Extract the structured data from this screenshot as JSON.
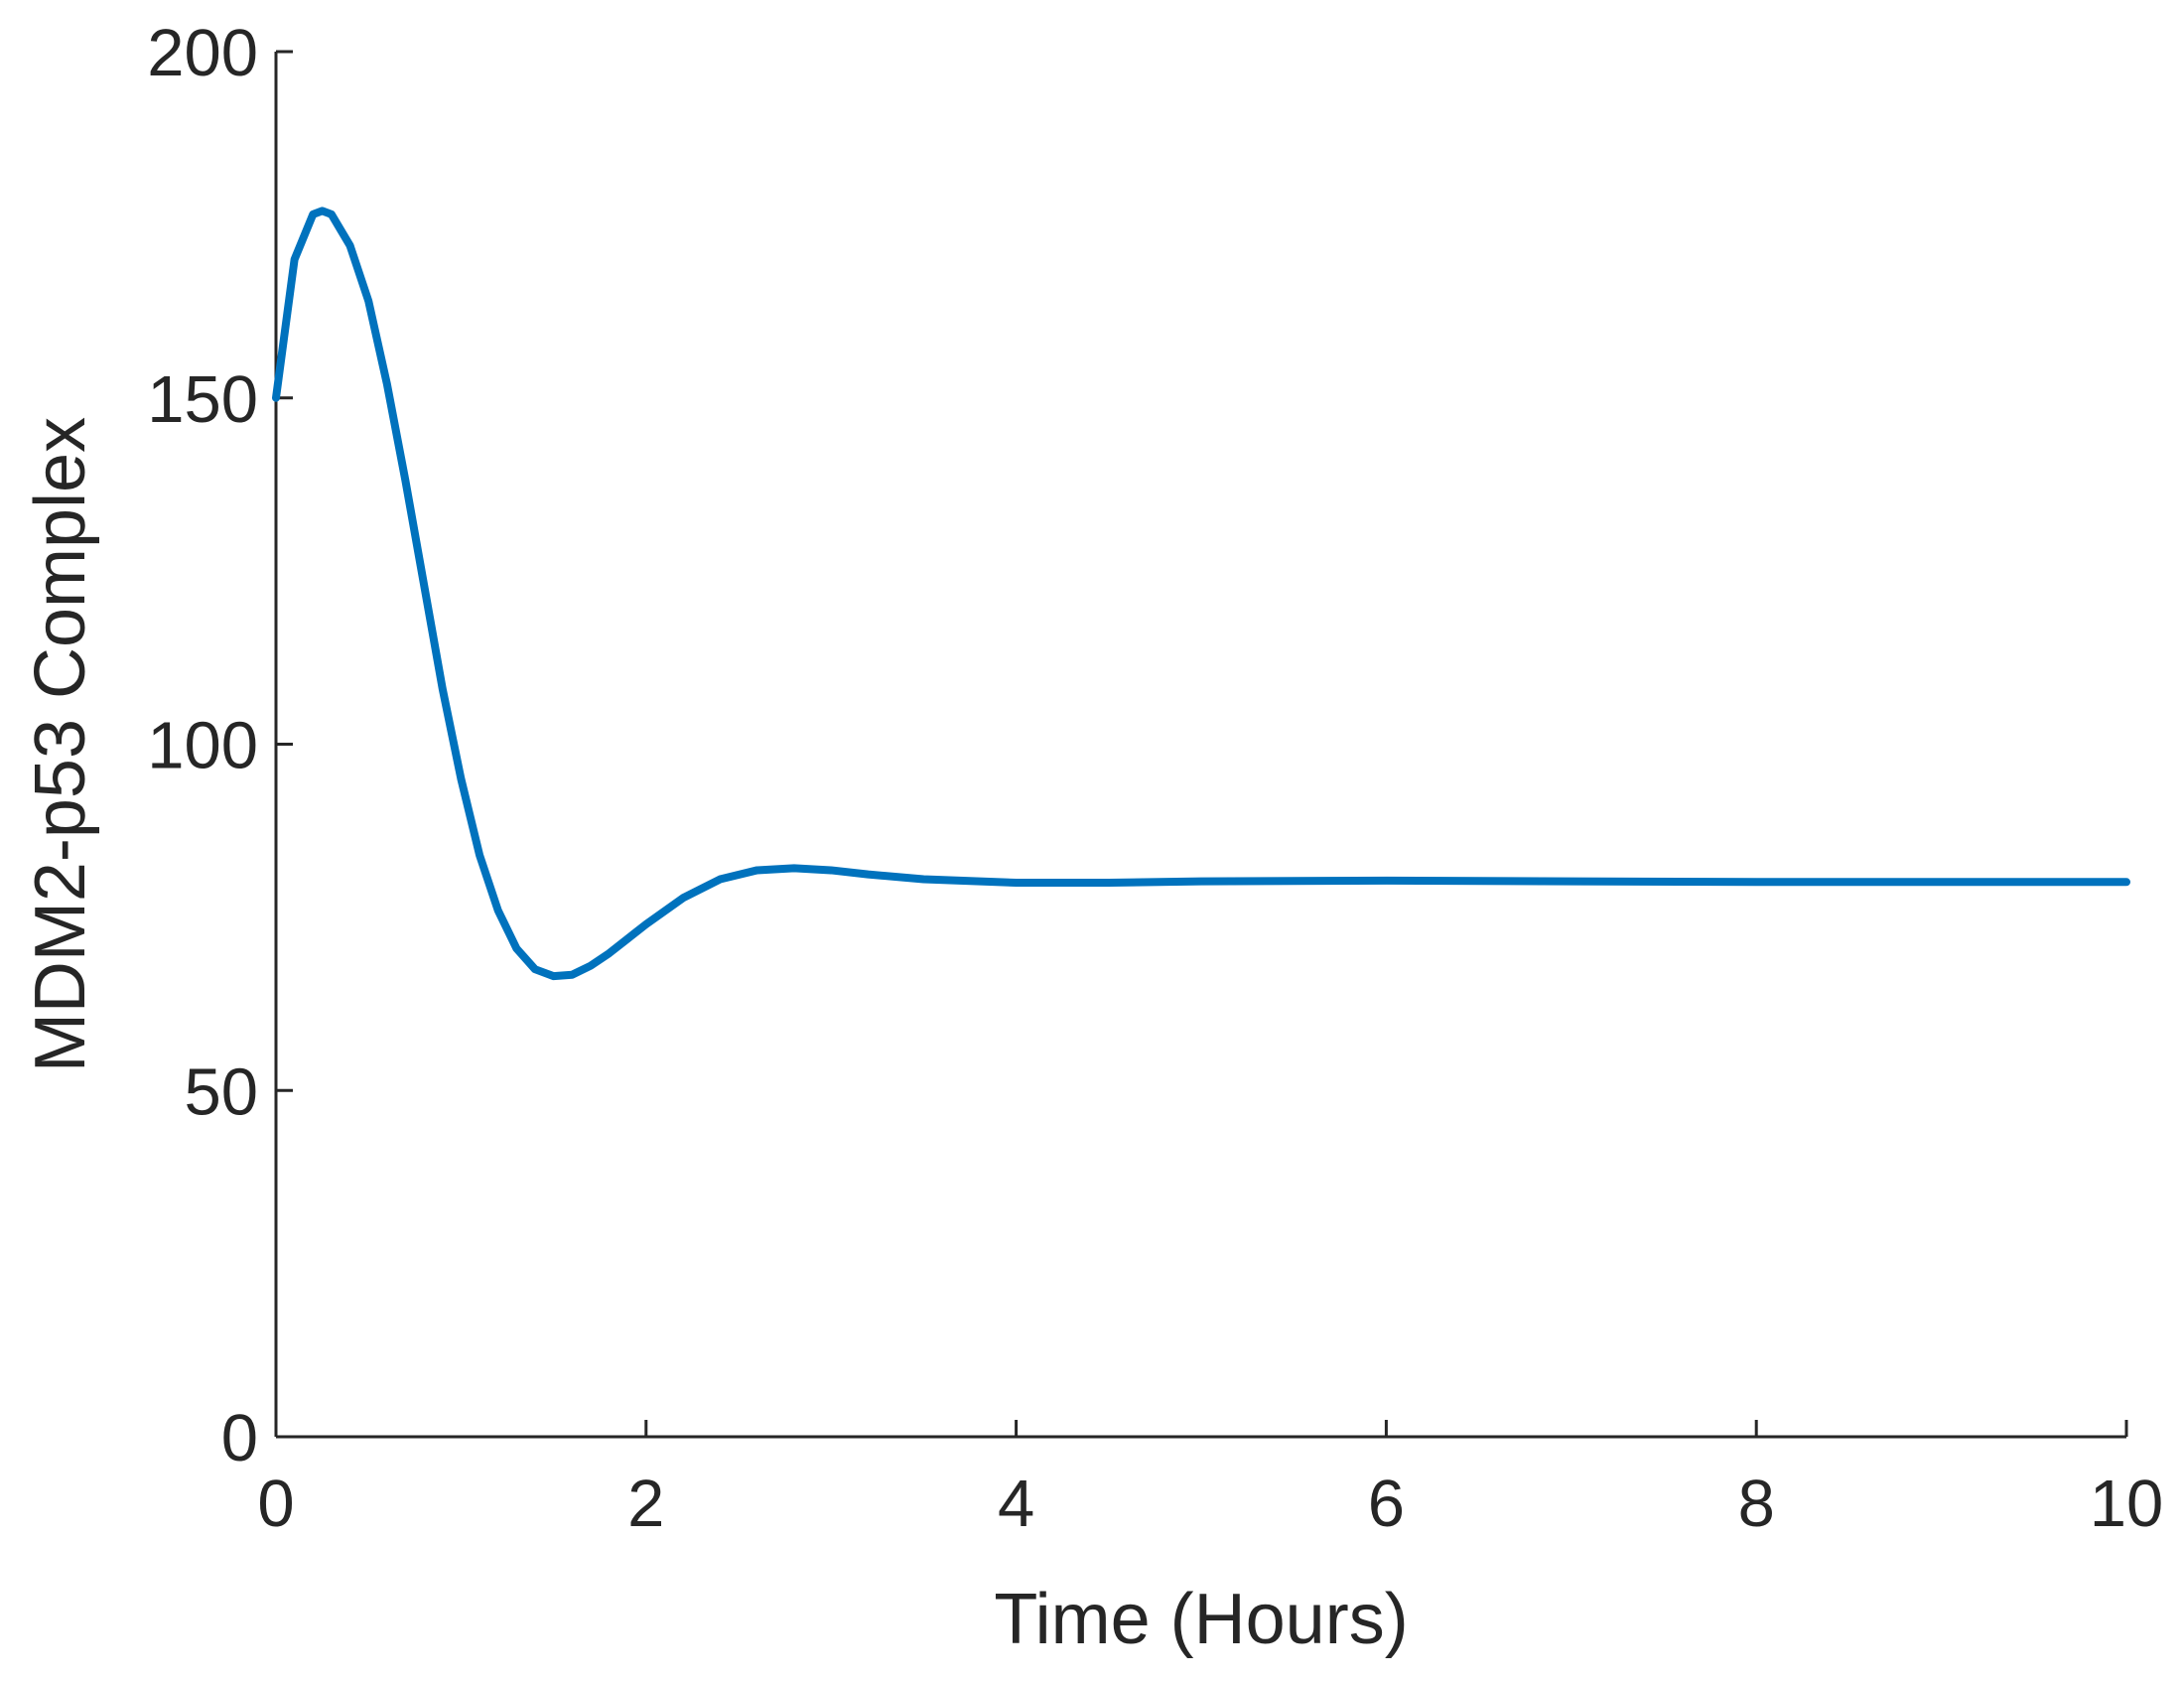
{
  "chart_data": {
    "type": "line",
    "x_label": "Time (Hours)",
    "y_label": "MDM2-p53 Complex",
    "x": [
      0,
      0.1,
      0.2,
      0.25,
      0.3,
      0.4,
      0.5,
      0.6,
      0.7,
      0.8,
      0.9,
      1.0,
      1.1,
      1.2,
      1.3,
      1.4,
      1.5,
      1.6,
      1.7,
      1.8,
      2.0,
      2.2,
      2.4,
      2.6,
      2.8,
      3.0,
      3.2,
      3.5,
      4.0,
      4.5,
      5,
      6,
      7,
      8,
      9,
      10
    ],
    "series": [
      {
        "color": "#0072bd",
        "values": [
          150,
          170,
          176.5,
          177,
          176.5,
          172,
          164,
          152,
          138,
          123,
          108,
          95,
          84,
          76,
          70.5,
          67.5,
          66.5,
          66.7,
          68,
          69.8,
          74,
          77.8,
          80.5,
          81.8,
          82.1,
          81.8,
          81.2,
          80.5,
          80,
          80,
          80.2,
          80.3,
          80.2,
          80.1,
          80.1,
          80.1
        ]
      }
    ],
    "xlim": [
      0,
      10
    ],
    "xticks": [
      0,
      2,
      4,
      6,
      8,
      10
    ],
    "ylim": [
      0,
      200
    ],
    "yticks": [
      0,
      50,
      100,
      150,
      200
    ],
    "grid": false
  }
}
